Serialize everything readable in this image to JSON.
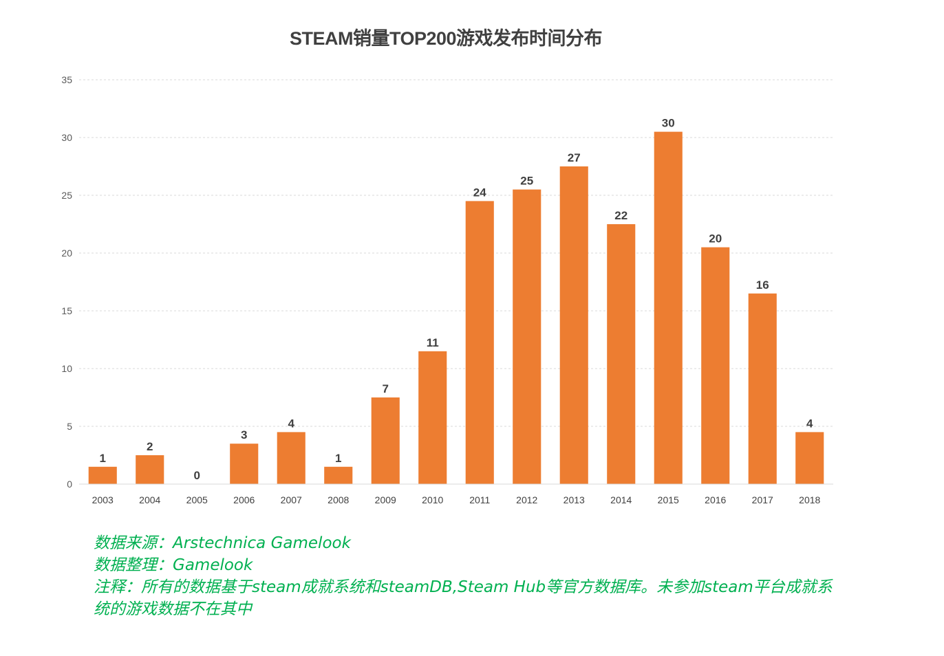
{
  "chart_data": {
    "type": "bar",
    "title": "STEAM销量TOP200游戏发布时间分布",
    "xlabel": "",
    "ylabel": "",
    "ylim": [
      0,
      35
    ],
    "yticks": [
      0,
      5,
      10,
      15,
      20,
      25,
      30,
      35
    ],
    "grid": true,
    "legend": "none",
    "categories": [
      "2003",
      "2004",
      "2005",
      "2006",
      "2007",
      "2008",
      "2009",
      "2010",
      "2011",
      "2012",
      "2013",
      "2014",
      "2015",
      "2016",
      "2017",
      "2018"
    ],
    "values": [
      1,
      2,
      0,
      3,
      4,
      1,
      7,
      11,
      24,
      25,
      27,
      22,
      30,
      20,
      16,
      4
    ],
    "bar_color": "#ed7d31"
  },
  "notes": [
    "数据来源：Arstechnica  Gamelook",
    "数据整理：Gamelook",
    "注释：所有的数据基于steam成就系统和steamDB,Steam Hub等官方数据库。未参加steam平台成就系统的游戏数据不在其中"
  ]
}
